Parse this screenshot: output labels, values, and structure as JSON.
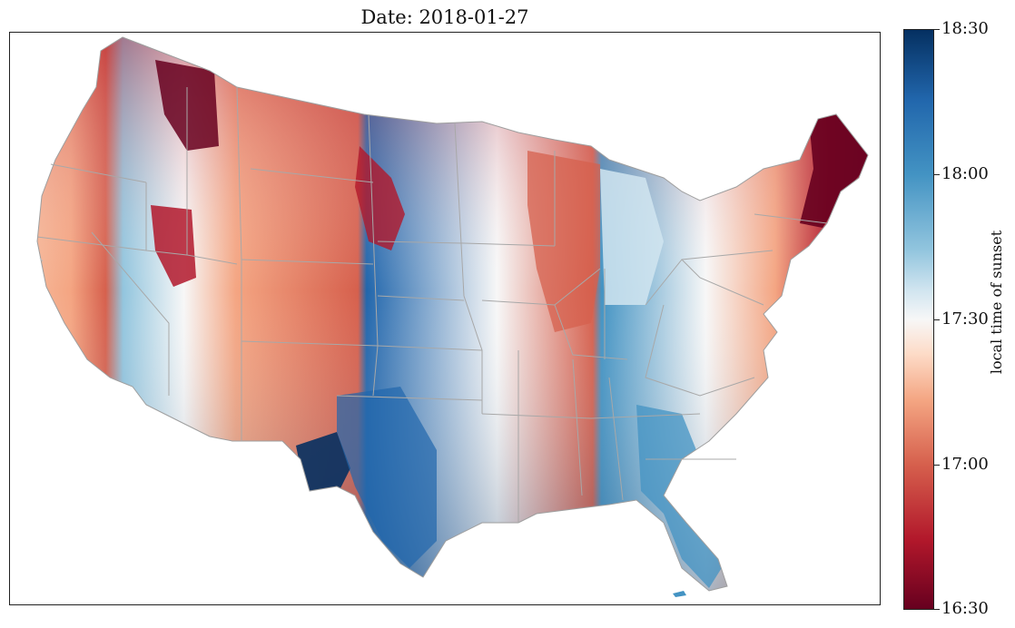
{
  "title": "Date: 2018-01-27",
  "colorbar": {
    "label": "local time of sunset",
    "ticks": [
      "18:30",
      "18:00",
      "17:30",
      "17:00",
      "16:30"
    ],
    "range": [
      "16:30",
      "18:30"
    ],
    "colormap": "RdBu",
    "colors": {
      "earliest": "#67001f",
      "early": "#d6604d",
      "mid": "#f7f7f7",
      "late": "#4393c3",
      "latest": "#053061"
    }
  },
  "map": {
    "region": "contiguous-united-states",
    "unit": "county",
    "state_borders": "#9e9e9e",
    "county_borders": "#d0d0d0"
  }
}
